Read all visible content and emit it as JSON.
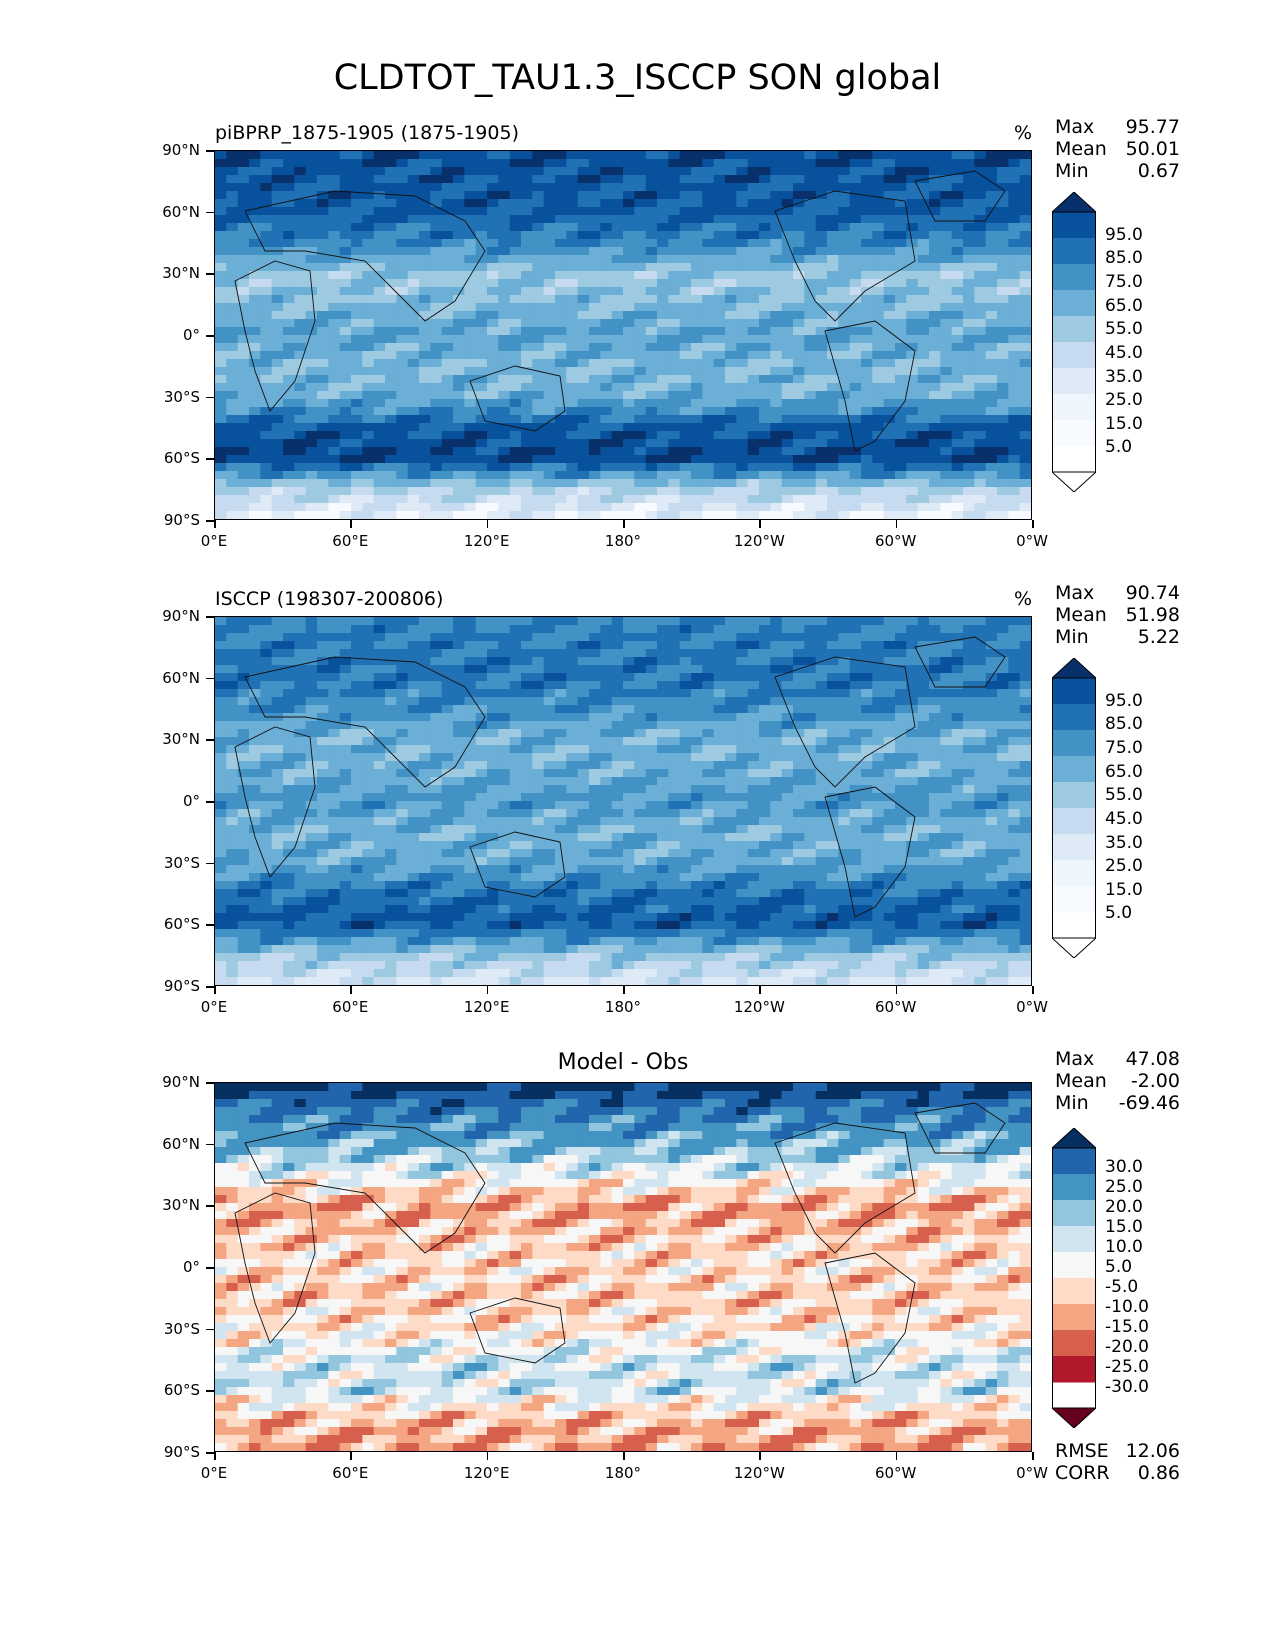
{
  "figure_title": "CLDTOT_TAU1.3_ISCCP SON global",
  "colors": {
    "blues": [
      "#f7fbff",
      "#deebf7",
      "#c6dbef",
      "#9ecae1",
      "#6baed6",
      "#4292c6",
      "#2171b5",
      "#08519c",
      "#08306b"
    ],
    "diverging": [
      "#67001f",
      "#b2182b",
      "#d6604d",
      "#f4a582",
      "#fddbc7",
      "#f7f7f7",
      "#d1e5f0",
      "#92c5de",
      "#4393c3",
      "#2166ac",
      "#053061"
    ]
  },
  "axes": {
    "lat_ticks": [
      "90°N",
      "60°N",
      "30°N",
      "0°",
      "30°S",
      "60°S",
      "90°S"
    ],
    "lon_ticks": [
      "0°E",
      "60°E",
      "120°E",
      "180°",
      "120°W",
      "60°W",
      "0°W"
    ]
  },
  "panels": [
    {
      "left_title": "piBPRP_1875-1905 (1875-1905)",
      "center_title": "",
      "unit": "%",
      "stats": [
        {
          "label": "Max",
          "value": "95.77"
        },
        {
          "label": "Mean",
          "value": "50.01"
        },
        {
          "label": "Min",
          "value": "0.67"
        }
      ],
      "colorbar_labels": [
        "95.0",
        "85.0",
        "75.0",
        "65.0",
        "55.0",
        "45.0",
        "35.0",
        "25.0",
        "15.0",
        "5.0"
      ],
      "metrics": []
    },
    {
      "left_title": "ISCCP (198307-200806)",
      "center_title": "",
      "unit": "%",
      "stats": [
        {
          "label": "Max",
          "value": "90.74"
        },
        {
          "label": "Mean",
          "value": "51.98"
        },
        {
          "label": "Min",
          "value": "5.22"
        }
      ],
      "colorbar_labels": [
        "95.0",
        "85.0",
        "75.0",
        "65.0",
        "55.0",
        "45.0",
        "35.0",
        "25.0",
        "15.0",
        "5.0"
      ],
      "metrics": []
    },
    {
      "left_title": "",
      "center_title": "Model - Obs",
      "unit": "",
      "stats": [
        {
          "label": "Max",
          "value": "47.08"
        },
        {
          "label": "Mean",
          "value": "-2.00"
        },
        {
          "label": "Min",
          "value": "-69.46"
        }
      ],
      "colorbar_labels": [
        "30.0",
        "25.0",
        "20.0",
        "15.0",
        "10.0",
        "5.0",
        "-5.0",
        "-10.0",
        "-15.0",
        "-20.0",
        "-25.0",
        "-30.0"
      ],
      "metrics": [
        {
          "label": "RMSE",
          "value": "12.06"
        },
        {
          "label": "CORR",
          "value": "0.86"
        }
      ]
    }
  ],
  "chart_data": [
    {
      "type": "heatmap",
      "title": "piBPRP_1875-1905 (1875-1905)",
      "units": "%",
      "xlabel": "",
      "ylabel": "",
      "x_range": [
        0,
        360
      ],
      "y_range": [
        -90,
        90
      ],
      "color_levels": [
        5,
        15,
        25,
        35,
        45,
        55,
        65,
        75,
        85,
        95
      ],
      "zonal_mean_profile": {
        "lat": [
          90,
          75,
          60,
          45,
          30,
          15,
          0,
          -15,
          -30,
          -45,
          -60,
          -75,
          -90
        ],
        "value": [
          85,
          80,
          78,
          65,
          40,
          45,
          55,
          45,
          50,
          78,
          88,
          35,
          10
        ]
      },
      "stats": {
        "max": 95.77,
        "mean": 50.01,
        "min": 0.67
      }
    },
    {
      "type": "heatmap",
      "title": "ISCCP (198307-200806)",
      "units": "%",
      "xlabel": "",
      "ylabel": "",
      "x_range": [
        0,
        360
      ],
      "y_range": [
        -90,
        90
      ],
      "color_levels": [
        5,
        15,
        25,
        35,
        45,
        55,
        65,
        75,
        85,
        95
      ],
      "zonal_mean_profile": {
        "lat": [
          90,
          75,
          60,
          45,
          30,
          15,
          0,
          -15,
          -30,
          -45,
          -60,
          -75,
          -90
        ],
        "value": [
          65,
          68,
          70,
          62,
          48,
          50,
          58,
          48,
          52,
          72,
          80,
          40,
          20
        ]
      },
      "stats": {
        "max": 90.74,
        "mean": 51.98,
        "min": 5.22
      }
    },
    {
      "type": "heatmap",
      "title": "Model - Obs",
      "units": "",
      "xlabel": "",
      "ylabel": "",
      "x_range": [
        0,
        360
      ],
      "y_range": [
        -90,
        90
      ],
      "color_levels": [
        -30,
        -25,
        -20,
        -15,
        -10,
        -5,
        5,
        10,
        15,
        20,
        25,
        30
      ],
      "zonal_mean_profile": {
        "lat": [
          90,
          75,
          60,
          45,
          30,
          15,
          0,
          -15,
          -30,
          -45,
          -60,
          -75,
          -90
        ],
        "value": [
          35,
          20,
          12,
          2,
          -10,
          -6,
          -4,
          -6,
          -3,
          4,
          5,
          -8,
          -10
        ]
      },
      "stats": {
        "max": 47.08,
        "mean": -2.0,
        "min": -69.46,
        "rmse": 12.06,
        "corr": 0.86
      }
    }
  ]
}
